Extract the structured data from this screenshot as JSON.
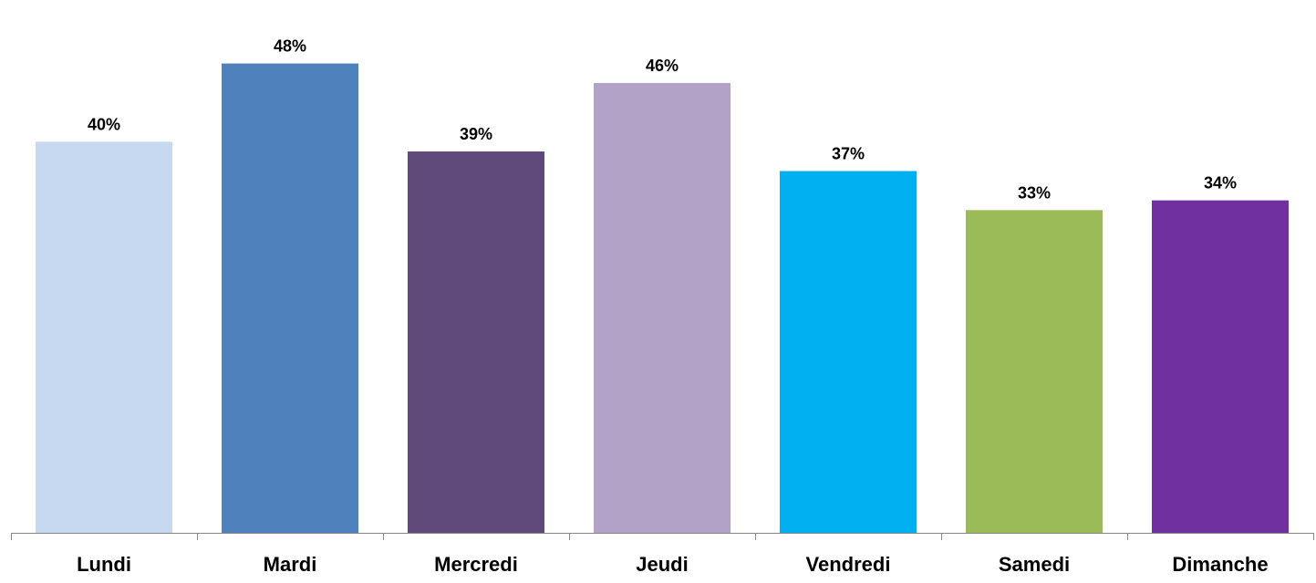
{
  "chart_data": {
    "type": "bar",
    "categories": [
      "Lundi",
      "Mardi",
      "Mercredi",
      "Jeudi",
      "Vendredi",
      "Samedi",
      "Dimanche"
    ],
    "values": [
      40,
      48,
      39,
      46,
      37,
      33,
      34
    ],
    "value_labels": [
      "40%",
      "48%",
      "39%",
      "46%",
      "37%",
      "33%",
      "34%"
    ],
    "colors": [
      "#c6d9f1",
      "#4f81bd",
      "#604a7b",
      "#b3a2c7",
      "#00b0f0",
      "#9bbb59",
      "#7030a0"
    ],
    "unit": "%",
    "ylim": [
      0,
      53
    ],
    "grid": false,
    "legend": "none",
    "axis_color": "#868686"
  }
}
